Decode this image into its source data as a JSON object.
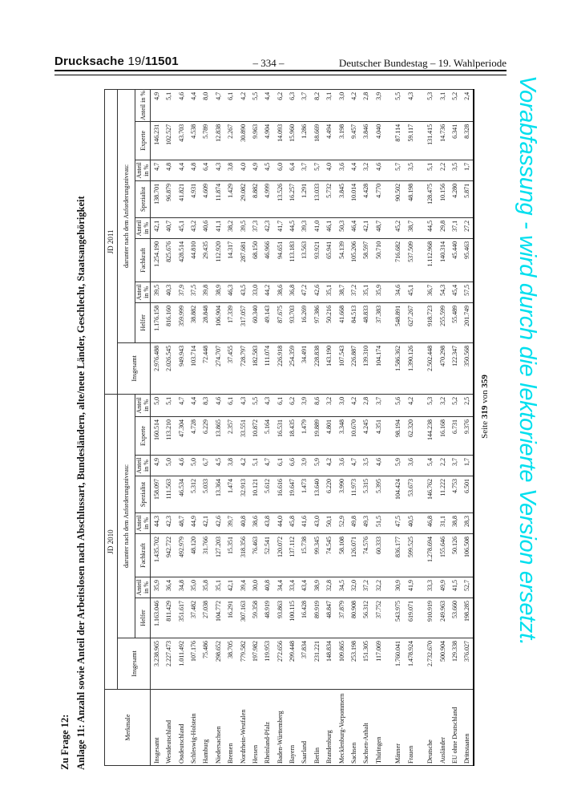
{
  "page_header": {
    "doc_label": "Drucksache",
    "doc_number_prefix": "19/",
    "doc_number": "11501",
    "page_center": "– 334 –",
    "right": "Deutscher Bundestag – 19. Wahlperiode"
  },
  "titles": {
    "question": "Zu Frage 12:",
    "annex": "Anlage 11: Anzahl sowie Anteil der Arbeitslosen nach Abschlussart, Bundesländern, alte/neue Länder, Geschlecht, Staatsangehörigkeit"
  },
  "side_note": {
    "text": "Vorabfassung - wird durch die lektorierte Version ersetzt.",
    "color": "#00dfee"
  },
  "page_note": {
    "prefix": "Seite",
    "page": "319",
    "of_word": "von",
    "total": "359"
  },
  "table": {
    "merkmale_header": "Merkmale",
    "group_2010": "JD 2010",
    "group_2011": "JD 2011",
    "insgesamt_label": "Insgesamt",
    "darunter_label": "darunter nach dem Anforderungsniveau:",
    "sub_headers": [
      "Helfer",
      "Anteil in %",
      "Fachkraft",
      "Anteil in %",
      "Spezialist",
      "Anteil in %",
      "Experte",
      "Anteil in %"
    ],
    "rows": [
      {
        "label": "Insgesamt",
        "v": [
          "3.238.965",
          "1.163.046",
          "35,9",
          "1.435.702",
          "44,3",
          "158.097",
          "4,9",
          "160.514",
          "5,0",
          "2.976.488",
          "1.176.158",
          "39,5",
          "1.254.190",
          "42,1",
          "138.701",
          "4,7",
          "146.231",
          "4,9"
        ]
      },
      {
        "label": "Westdeutschland",
        "v": [
          "2.227.473",
          "811.429",
          "36,4",
          "942.722",
          "42,3",
          "111.563",
          "5,0",
          "113.210",
          "5,1",
          "2.026.545",
          "816.160",
          "40,3",
          "825.676",
          "40,7",
          "96.879",
          "4,8",
          "102.527",
          "5,1"
        ]
      },
      {
        "label": "Ostdeutschland",
        "v": [
          "1.011.492",
          "351.617",
          "34,8",
          "492.979",
          "48,7",
          "46.534",
          "4,6",
          "47.304",
          "4,7",
          "949.943",
          "359.999",
          "37,9",
          "428.514",
          "45,1",
          "41.821",
          "4,4",
          "43.703",
          "4,6"
        ]
      },
      {
        "label": "Schleswig-Holstein",
        "v": [
          "107.176",
          "37.482",
          "35,0",
          "48.120",
          "44,9",
          "5.312",
          "5,0",
          "4.728",
          "4,4",
          "103.714",
          "38.882",
          "37,5",
          "44.810",
          "43,2",
          "4.931",
          "4,8",
          "4.538",
          "4,4"
        ]
      },
      {
        "label": "Hamburg",
        "v": [
          "75.486",
          "27.038",
          "35,8",
          "31.766",
          "42,1",
          "5.033",
          "6,7",
          "6.229",
          "8,3",
          "72.448",
          "28.848",
          "39,8",
          "29.435",
          "40,6",
          "4.609",
          "6,4",
          "5.789",
          "8,0"
        ]
      },
      {
        "label": "Niedersachsen",
        "v": [
          "298.652",
          "104.772",
          "35,1",
          "127.203",
          "42,6",
          "13.364",
          "4,5",
          "13.865",
          "4,6",
          "274.707",
          "106.904",
          "38,9",
          "112.920",
          "41,1",
          "11.874",
          "4,3",
          "12.838",
          "4,7"
        ]
      },
      {
        "label": "Bremen",
        "v": [
          "38.705",
          "16.291",
          "42,1",
          "15.351",
          "39,7",
          "1.474",
          "3,8",
          "2.357",
          "6,1",
          "37.455",
          "17.339",
          "46,3",
          "14.317",
          "38,2",
          "1.429",
          "3,8",
          "2.267",
          "6,1"
        ]
      },
      {
        "label": "Nordrhein-Westfalen",
        "v": [
          "779.582",
          "307.163",
          "39,4",
          "318.356",
          "40,8",
          "32.913",
          "4,2",
          "33.551",
          "4,3",
          "728.797",
          "317.057",
          "43,5",
          "287.681",
          "39,5",
          "29.082",
          "4,0",
          "30.890",
          "4,2"
        ]
      },
      {
        "label": "Hessen",
        "v": [
          "197.982",
          "59.358",
          "30,0",
          "76.463",
          "38,6",
          "10.121",
          "5,1",
          "10.872",
          "5,5",
          "182.583",
          "60.340",
          "33,0",
          "68.150",
          "37,3",
          "8.882",
          "4,9",
          "9.963",
          "5,5"
        ]
      },
      {
        "label": "Rheinland-Pfalz",
        "v": [
          "119.953",
          "48.919",
          "40,8",
          "52.541",
          "43,8",
          "5.612",
          "4,7",
          "5.164",
          "4,3",
          "111.074",
          "49.143",
          "44,2",
          "46.966",
          "42,3",
          "4.999",
          "4,5",
          "4.904",
          "4,4"
        ]
      },
      {
        "label": "Baden-Württemberg",
        "v": [
          "272.656",
          "93.863",
          "34,4",
          "120.072",
          "44,0",
          "16.616",
          "6,1",
          "16.531",
          "6,1",
          "226.918",
          "87.675",
          "38,6",
          "94.651",
          "41,7",
          "13.526",
          "6,0",
          "14.093",
          "6,2"
        ]
      },
      {
        "label": "Bayern",
        "v": [
          "299.448",
          "100.115",
          "33,4",
          "137.112",
          "45,8",
          "19.647",
          "6,6",
          "18.435",
          "6,2",
          "254.359",
          "93.703",
          "36,8",
          "113.183",
          "44,5",
          "16.257",
          "6,4",
          "15.960",
          "6,3"
        ]
      },
      {
        "label": "Saarland",
        "v": [
          "37.834",
          "16.428",
          "43,4",
          "15.738",
          "41,6",
          "1.473",
          "3,9",
          "1.479",
          "3,9",
          "34.491",
          "16.269",
          "47,2",
          "13.563",
          "39,3",
          "1.291",
          "3,7",
          "1.286",
          "3,7"
        ]
      },
      {
        "label": "Berlin",
        "v": [
          "231.221",
          "89.919",
          "38,9",
          "99.345",
          "43,0",
          "13.640",
          "5,9",
          "19.889",
          "8,6",
          "228.838",
          "97.386",
          "42,6",
          "93.921",
          "41,0",
          "13.033",
          "5,7",
          "18.669",
          "8,2"
        ]
      },
      {
        "label": "Brandenburg",
        "v": [
          "148.834",
          "48.847",
          "32,8",
          "74.545",
          "50,1",
          "6.220",
          "4,2",
          "4.801",
          "3,2",
          "143.190",
          "50.216",
          "35,1",
          "65.941",
          "46,1",
          "5.732",
          "4,0",
          "4.494",
          "3,1"
        ]
      },
      {
        "label": "Mecklenburg-Vorpommern",
        "v": [
          "109.865",
          "37.879",
          "34,5",
          "58.108",
          "52,9",
          "3.990",
          "3,6",
          "3.348",
          "3,0",
          "107.543",
          "41.668",
          "38,7",
          "54.139",
          "50,3",
          "3.845",
          "3,6",
          "3.198",
          "3,0"
        ]
      },
      {
        "label": "Sachsen",
        "v": [
          "253.198",
          "80.908",
          "32,0",
          "126.071",
          "49,8",
          "11.973",
          "4,7",
          "10.670",
          "4,2",
          "226.887",
          "84.513",
          "37,2",
          "105.206",
          "46,4",
          "10.014",
          "4,4",
          "9.457",
          "4,2"
        ]
      },
      {
        "label": "Sachsen-Anhalt",
        "v": [
          "151.305",
          "56.312",
          "37,2",
          "74.576",
          "49,3",
          "5.315",
          "3,5",
          "4.245",
          "2,8",
          "139.310",
          "48.833",
          "35,1",
          "58.597",
          "42,1",
          "4.428",
          "3,2",
          "3.846",
          "2,8"
        ]
      },
      {
        "label": "Thüringen",
        "v": [
          "117.069",
          "37.752",
          "32,2",
          "60.333",
          "51,5",
          "5.395",
          "4,6",
          "4.351",
          "3,7",
          "104.174",
          "37.383",
          "35,9",
          "50.710",
          "48,7",
          "4.770",
          "4,6",
          "4.040",
          "3,9"
        ]
      },
      {
        "sep": true
      },
      {
        "label": "Männer",
        "v": [
          "1.760.041",
          "543.975",
          "30,9",
          "836.177",
          "47,5",
          "104.424",
          "5,9",
          "98.194",
          "5,6",
          "1.586.362",
          "548.891",
          "34,6",
          "716.682",
          "45,2",
          "90.502",
          "5,7",
          "87.114",
          "5,5"
        ]
      },
      {
        "label": "Frauen",
        "v": [
          "1.478.924",
          "619.071",
          "41,9",
          "599.525",
          "40,5",
          "53.673",
          "3,6",
          "62.320",
          "4,2",
          "1.390.126",
          "627.267",
          "45,1",
          "537.509",
          "38,7",
          "48.198",
          "3,5",
          "59.117",
          "4,3"
        ]
      },
      {
        "sep": true
      },
      {
        "label": "Deutsche",
        "v": [
          "2.732.670",
          "910.919",
          "33,3",
          "1.278.694",
          "46,8",
          "146.762",
          "5,4",
          "144.238",
          "5,3",
          "2.502.448",
          "918.723",
          "36,7",
          "1.112.968",
          "44,5",
          "128.475",
          "5,1",
          "131.415",
          "5,3"
        ]
      },
      {
        "label": "Ausländer",
        "v": [
          "500.904",
          "249.963",
          "49,9",
          "155.646",
          "31,1",
          "11.222",
          "2,2",
          "16.168",
          "3,2",
          "470.298",
          "255.599",
          "54,3",
          "140.314",
          "29,8",
          "10.156",
          "2,2",
          "14.736",
          "3,1"
        ]
      },
      {
        "label": "EU ohne Deutschland",
        "v": [
          "129.338",
          "53.660",
          "41,5",
          "50.126",
          "38,8",
          "4.753",
          "3,7",
          "6.731",
          "5,2",
          "122.347",
          "55.489",
          "45,4",
          "45.440",
          "37,1",
          "4.280",
          "3,5",
          "6.341",
          "5,2"
        ]
      },
      {
        "label": "Drittstaaten",
        "v": [
          "376.027",
          "198.285",
          "52,7",
          "106.508",
          "28,3",
          "6.501",
          "1,7",
          "9.376",
          "2,5",
          "350.568",
          "201.749",
          "57,5",
          "95.463",
          "27,2",
          "5.871",
          "1,7",
          "8.328",
          "2,4"
        ]
      }
    ]
  }
}
